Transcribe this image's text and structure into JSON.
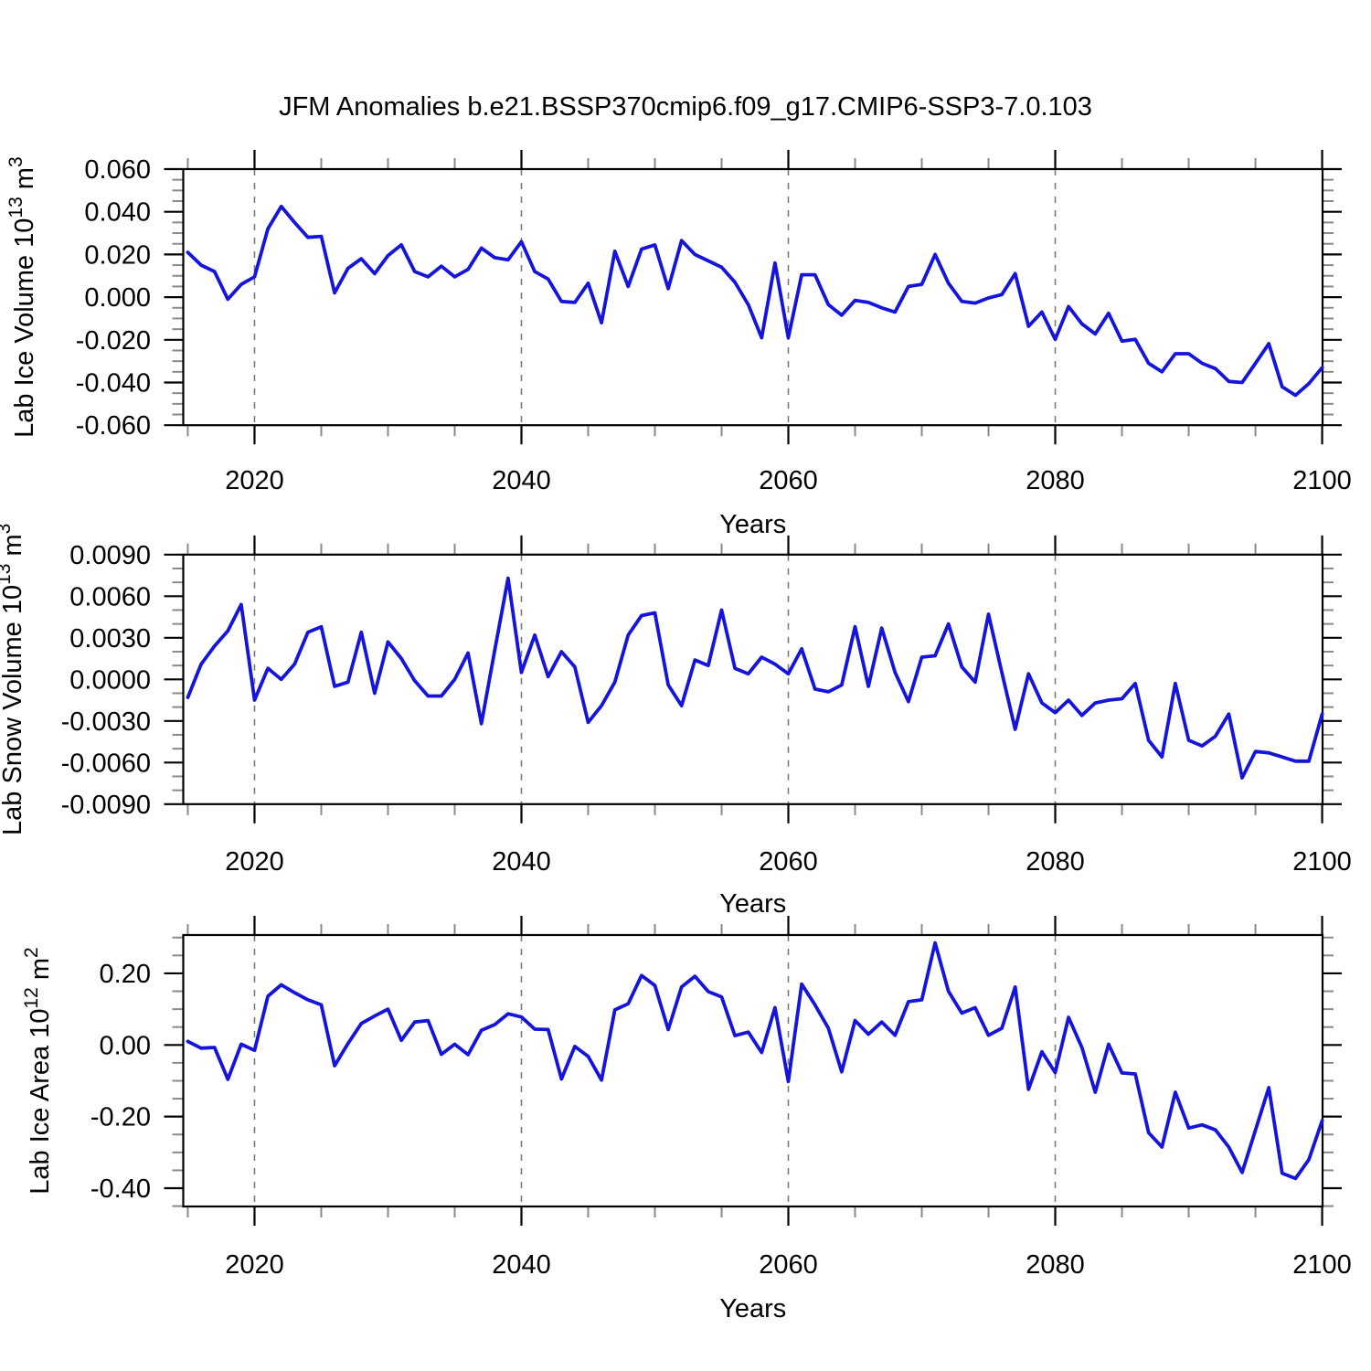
{
  "title": "JFM Anomalies b.e21.BSSP370cmip6.f09_g17.CMIP6-SSP3-7.0.103",
  "line_color": "#1414dd",
  "grid_color": "#7a7a7a",
  "years": [
    2015,
    2016,
    2017,
    2018,
    2019,
    2020,
    2021,
    2022,
    2023,
    2024,
    2025,
    2026,
    2027,
    2028,
    2029,
    2030,
    2031,
    2032,
    2033,
    2034,
    2035,
    2036,
    2037,
    2038,
    2039,
    2040,
    2041,
    2042,
    2043,
    2044,
    2045,
    2046,
    2047,
    2048,
    2049,
    2050,
    2051,
    2052,
    2053,
    2054,
    2055,
    2056,
    2057,
    2058,
    2059,
    2060,
    2061,
    2062,
    2063,
    2064,
    2065,
    2066,
    2067,
    2068,
    2069,
    2070,
    2071,
    2072,
    2073,
    2074,
    2075,
    2076,
    2077,
    2078,
    2079,
    2080,
    2081,
    2082,
    2083,
    2084,
    2085,
    2086,
    2087,
    2088,
    2089,
    2090,
    2091,
    2092,
    2093,
    2094,
    2095,
    2096,
    2097,
    2098,
    2099,
    2100
  ],
  "xlim": [
    2014.66,
    2100.03
  ],
  "xticks": [
    2020,
    2040,
    2060,
    2080,
    2100
  ],
  "xtick_labels": [
    "2020",
    "2040",
    "2060",
    "2080",
    "2100"
  ],
  "xminor_step": 5,
  "xgrid_years": [
    2020,
    2040,
    2060,
    2080
  ],
  "xlabel": "Years",
  "chart_data": [
    {
      "type": "line",
      "name": "lab-ice-volume",
      "ylabel_text": "Lab Ice Volume 10¹³ m³",
      "ylabel_parts": [
        {
          "text": "Lab Ice Volume 10"
        },
        {
          "text": "13",
          "super": true
        },
        {
          "text": " m"
        },
        {
          "text": "3",
          "super": true
        }
      ],
      "xlabel": "Years",
      "ylim": [
        -0.06,
        0.06
      ],
      "yticks": [
        0.06,
        0.04,
        0.02,
        0.0,
        -0.02,
        -0.04,
        -0.06
      ],
      "ytick_labels": [
        "0.060",
        "0.040",
        "0.020",
        "0.000",
        "-0.020",
        "-0.040",
        "-0.060"
      ],
      "ymajor_step": 0.02,
      "yminor_step": 0.005,
      "values": [
        0.021,
        0.015,
        0.012,
        -0.001,
        0.006,
        0.0095,
        0.032,
        0.0425,
        0.035,
        0.028,
        0.0285,
        0.002,
        0.0135,
        0.018,
        0.011,
        0.0195,
        0.0245,
        0.012,
        0.0095,
        0.0145,
        0.0095,
        0.013,
        0.023,
        0.0185,
        0.0175,
        0.026,
        0.012,
        0.0085,
        -0.002,
        -0.0025,
        0.0065,
        -0.012,
        0.0215,
        0.005,
        0.0225,
        0.0245,
        0.004,
        0.0265,
        0.02,
        0.017,
        0.014,
        0.007,
        -0.0035,
        -0.019,
        0.016,
        -0.019,
        0.0105,
        0.0105,
        -0.0035,
        -0.0085,
        -0.0015,
        -0.0025,
        -0.005,
        -0.007,
        0.005,
        0.006,
        0.02,
        0.0065,
        -0.002,
        -0.0028,
        -0.0004,
        0.0012,
        0.011,
        -0.0136,
        -0.007,
        -0.0198,
        -0.0044,
        -0.0125,
        -0.0172,
        -0.0076,
        -0.0206,
        -0.0198,
        -0.031,
        -0.035,
        -0.0265,
        -0.0265,
        -0.031,
        -0.0335,
        -0.0395,
        -0.04,
        -0.031,
        -0.0218,
        -0.042,
        -0.046,
        -0.0405,
        -0.033
      ]
    },
    {
      "type": "line",
      "name": "lab-snow-volume",
      "ylabel_text": "Lab Snow Volume 10¹³ m³",
      "ylabel_parts": [
        {
          "text": "Lab Snow Volume 10"
        },
        {
          "text": "13",
          "super": true
        },
        {
          "text": " m"
        },
        {
          "text": "3",
          "super": true
        }
      ],
      "xlabel": "Years",
      "ylim": [
        -0.009,
        0.009
      ],
      "yticks": [
        0.009,
        0.006,
        0.003,
        0.0,
        -0.003,
        -0.006,
        -0.009
      ],
      "ytick_labels": [
        "0.0090",
        "0.0060",
        "0.0030",
        "0.0000",
        "-0.0030",
        "-0.0060",
        "-0.0090"
      ],
      "ymajor_step": 0.003,
      "yminor_step": 0.001,
      "values": [
        -0.0013,
        0.0011,
        0.0024,
        0.0035,
        0.0054,
        -0.0015,
        0.0008,
        0.0,
        0.0011,
        0.0034,
        0.0038,
        -0.0005,
        -0.0002,
        0.0034,
        -0.001,
        0.0027,
        0.0015,
        -0.0001,
        -0.0012,
        -0.0012,
        0.0,
        0.0019,
        -0.0032,
        0.0021,
        0.0073,
        0.0005,
        0.0032,
        0.0002,
        0.002,
        0.0009,
        -0.0031,
        -0.0019,
        -0.0002,
        0.0032,
        0.0046,
        0.0048,
        -0.0004,
        -0.0019,
        0.0014,
        0.001,
        0.005,
        0.0008,
        0.0004,
        0.0016,
        0.0011,
        0.0004,
        0.0022,
        -0.0007,
        -0.0009,
        -0.0004,
        0.0038,
        -0.0005,
        0.0037,
        0.0005,
        -0.0016,
        0.0016,
        0.0017,
        0.004,
        0.0009,
        -0.0002,
        0.0047,
        0.0005,
        -0.0036,
        0.0004,
        -0.0017,
        -0.0024,
        -0.0015,
        -0.0026,
        -0.0017,
        -0.0015,
        -0.0014,
        -0.0003,
        -0.0044,
        -0.0056,
        -0.0003,
        -0.0044,
        -0.0048,
        -0.0041,
        -0.0025,
        -0.0071,
        -0.0052,
        -0.0053,
        -0.0056,
        -0.0059,
        -0.0059,
        -0.0025
      ]
    },
    {
      "type": "line",
      "name": "lab-ice-area",
      "ylabel_text": "Lab Ice Area 10¹² m²",
      "ylabel_parts": [
        {
          "text": "Lab Ice Area 10"
        },
        {
          "text": "12",
          "super": true
        },
        {
          "text": " m"
        },
        {
          "text": "2",
          "super": true
        }
      ],
      "xlabel": "Years",
      "ylim": [
        -0.451,
        0.307
      ],
      "yticks": [
        0.2,
        0.0,
        -0.2,
        -0.4
      ],
      "ytick_labels": [
        "0.20",
        "0.00",
        "-0.20",
        "-0.40"
      ],
      "ymajor_step": 0.2,
      "yminor_step": 0.05,
      "values": [
        0.01,
        -0.009,
        -0.007,
        -0.096,
        0.002,
        -0.015,
        0.136,
        0.168,
        0.146,
        0.126,
        0.112,
        -0.058,
        0.004,
        0.06,
        0.081,
        0.1,
        0.013,
        0.064,
        0.068,
        -0.026,
        0.002,
        -0.027,
        0.041,
        0.057,
        0.087,
        0.078,
        0.044,
        0.043,
        -0.095,
        -0.004,
        -0.032,
        -0.098,
        0.098,
        0.115,
        0.194,
        0.166,
        0.043,
        0.162,
        0.192,
        0.149,
        0.134,
        0.026,
        0.036,
        -0.021,
        0.104,
        -0.102,
        0.17,
        0.112,
        0.047,
        -0.075,
        0.068,
        0.03,
        0.064,
        0.027,
        0.121,
        0.126,
        0.285,
        0.15,
        0.089,
        0.104,
        0.027,
        0.047,
        0.162,
        -0.124,
        -0.019,
        -0.077,
        0.077,
        -0.007,
        -0.132,
        0.002,
        -0.078,
        -0.081,
        -0.245,
        -0.285,
        -0.132,
        -0.232,
        -0.223,
        -0.237,
        -0.285,
        -0.356,
        -0.238,
        -0.119,
        -0.358,
        -0.373,
        -0.32,
        -0.211
      ]
    }
  ]
}
